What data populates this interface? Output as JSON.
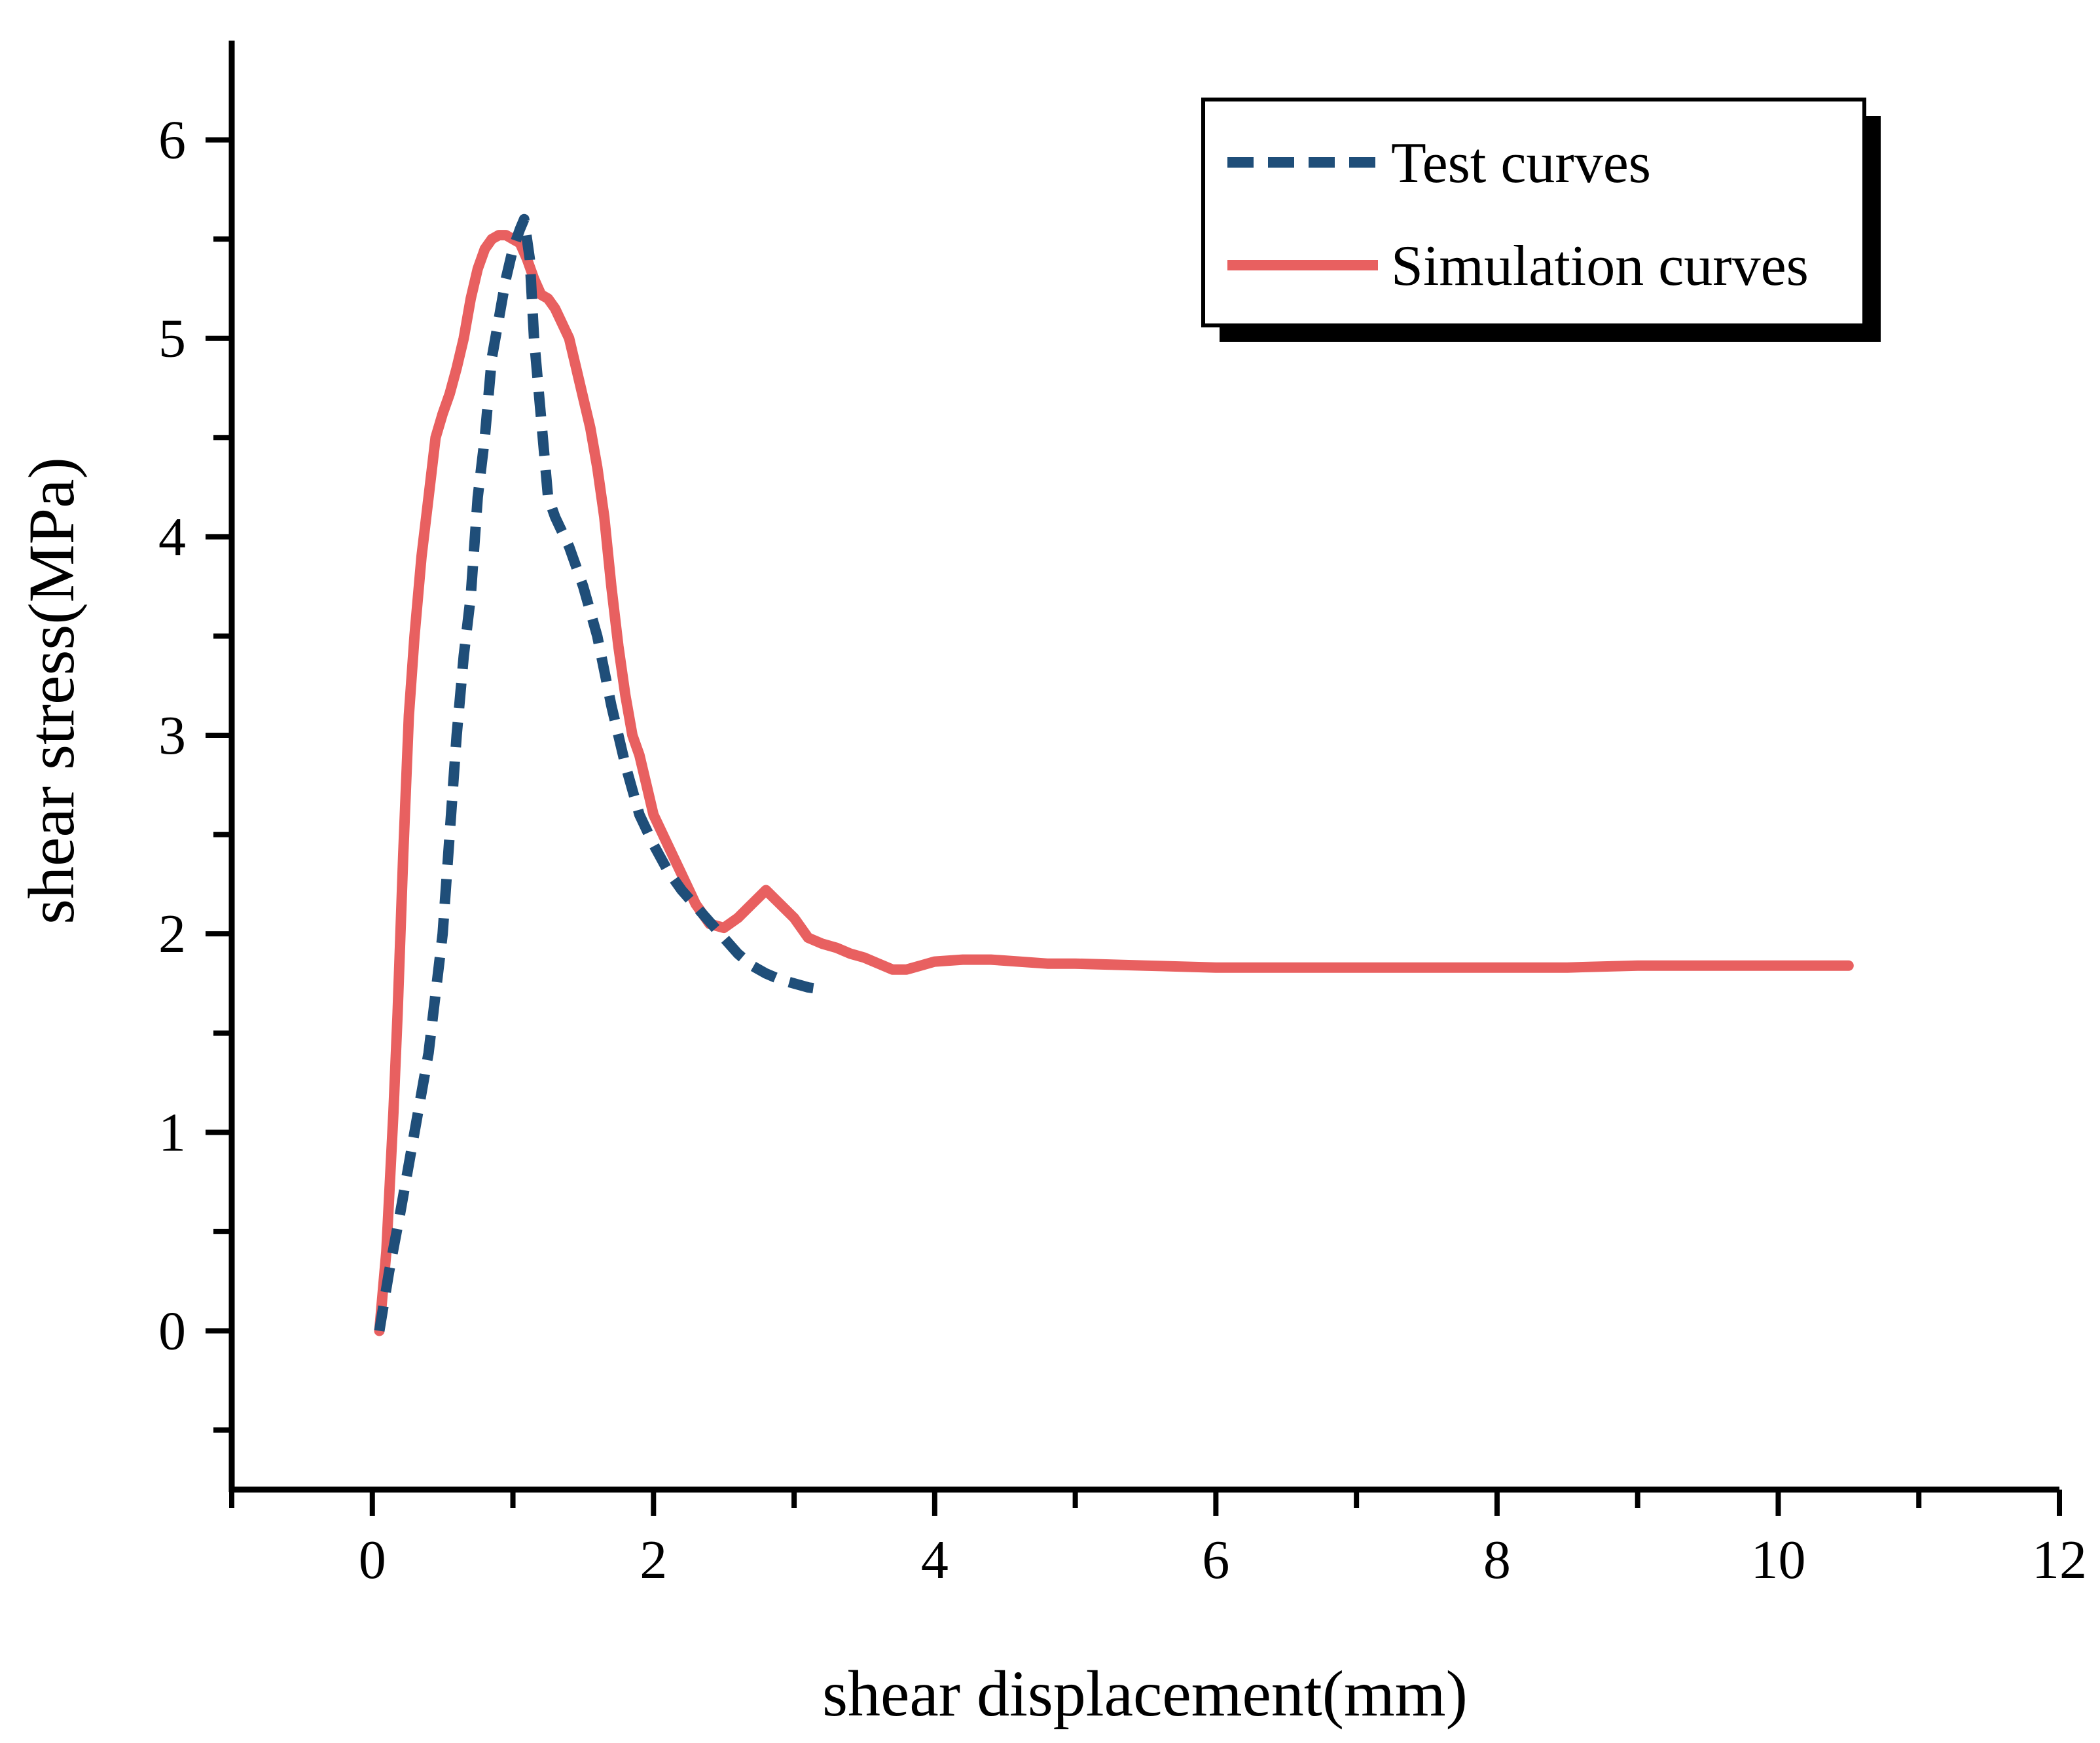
{
  "chart_data": {
    "type": "line",
    "title": "",
    "xlabel": "shear displacement(mm)",
    "ylabel": "shear stress(MPa)",
    "xlim": [
      -1,
      12
    ],
    "ylim": [
      -0.8,
      6.5
    ],
    "xticks": [
      0,
      2,
      4,
      6,
      8,
      10,
      12
    ],
    "xtick_labels": [
      "0",
      "2",
      "4",
      "6",
      "8",
      "10",
      "12"
    ],
    "yticks": [
      0,
      1,
      2,
      3,
      4,
      5,
      6
    ],
    "ytick_labels": [
      "0",
      "1",
      "2",
      "3",
      "4",
      "5",
      "6"
    ],
    "grid": false,
    "legend_position": "top-right",
    "series": [
      {
        "name": "Test curves",
        "style": "dashed",
        "color": "#1f4e79",
        "x": [
          0.05,
          0.12,
          0.2,
          0.3,
          0.4,
          0.5,
          0.55,
          0.6,
          0.65,
          0.7,
          0.75,
          0.8,
          0.85,
          0.9,
          0.95,
          1.0,
          1.05,
          1.08,
          1.12,
          1.15,
          1.2,
          1.25,
          1.3,
          1.4,
          1.5,
          1.6,
          1.7,
          1.8,
          1.9,
          2.0,
          2.1,
          2.2,
          2.3,
          2.4,
          2.5,
          2.6,
          2.7,
          2.8,
          2.9,
          3.0,
          3.1,
          3.2
        ],
        "y": [
          0.0,
          0.3,
          0.6,
          1.0,
          1.4,
          2.0,
          2.5,
          3.0,
          3.4,
          3.7,
          4.2,
          4.5,
          4.9,
          5.1,
          5.3,
          5.45,
          5.55,
          5.6,
          5.4,
          5.0,
          4.6,
          4.2,
          4.1,
          3.95,
          3.75,
          3.5,
          3.15,
          2.85,
          2.6,
          2.45,
          2.32,
          2.22,
          2.14,
          2.06,
          1.98,
          1.9,
          1.84,
          1.8,
          1.77,
          1.75,
          1.73,
          1.72
        ]
      },
      {
        "name": "Simulation curves",
        "style": "solid",
        "color": "#e86060",
        "x": [
          0.05,
          0.1,
          0.15,
          0.18,
          0.22,
          0.26,
          0.3,
          0.35,
          0.4,
          0.45,
          0.5,
          0.55,
          0.6,
          0.65,
          0.7,
          0.75,
          0.8,
          0.85,
          0.9,
          0.95,
          1.0,
          1.05,
          1.1,
          1.15,
          1.2,
          1.25,
          1.3,
          1.4,
          1.45,
          1.5,
          1.55,
          1.6,
          1.65,
          1.7,
          1.75,
          1.8,
          1.85,
          1.9,
          1.95,
          2.0,
          2.1,
          2.2,
          2.3,
          2.4,
          2.5,
          2.6,
          2.7,
          2.8,
          2.9,
          3.0,
          3.1,
          3.2,
          3.3,
          3.4,
          3.5,
          3.6,
          3.7,
          3.8,
          3.9,
          4.0,
          4.2,
          4.4,
          4.6,
          4.8,
          5.0,
          5.5,
          6.0,
          6.5,
          7.0,
          7.5,
          8.0,
          8.5,
          9.0,
          9.5,
          10.0,
          10.3,
          10.5
        ],
        "y": [
          0.0,
          0.4,
          1.1,
          1.6,
          2.4,
          3.1,
          3.5,
          3.9,
          4.2,
          4.5,
          4.62,
          4.72,
          4.85,
          5.0,
          5.2,
          5.35,
          5.45,
          5.5,
          5.52,
          5.52,
          5.5,
          5.48,
          5.4,
          5.3,
          5.22,
          5.2,
          5.15,
          5.0,
          4.85,
          4.7,
          4.55,
          4.35,
          4.1,
          3.75,
          3.45,
          3.2,
          3.0,
          2.9,
          2.75,
          2.6,
          2.45,
          2.3,
          2.15,
          2.05,
          2.03,
          2.08,
          2.15,
          2.22,
          2.15,
          2.08,
          1.98,
          1.95,
          1.93,
          1.9,
          1.88,
          1.85,
          1.82,
          1.82,
          1.84,
          1.86,
          1.87,
          1.87,
          1.86,
          1.85,
          1.85,
          1.84,
          1.83,
          1.83,
          1.83,
          1.83,
          1.83,
          1.83,
          1.84,
          1.84,
          1.84,
          1.84,
          1.84
        ]
      }
    ]
  }
}
